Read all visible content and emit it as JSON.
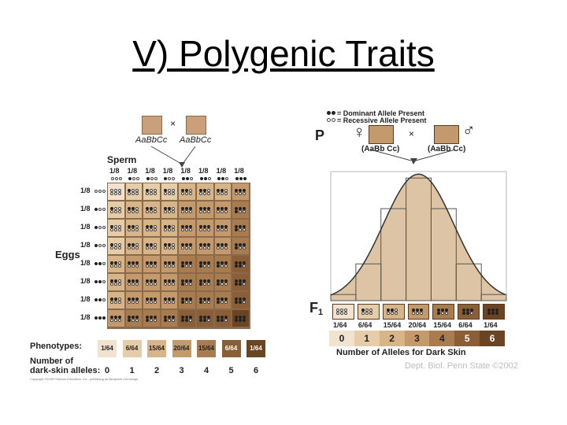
{
  "slide": {
    "title": "V) Polygenic Traits"
  },
  "left": {
    "parent_female_label": "AaBbCc",
    "parent_male_label": "AaBbCc",
    "cross_symbol": "×",
    "sperm_label": "Sperm",
    "eggs_label": "Eggs",
    "gamete_frequency": "1/8",
    "gamete_dark_counts": [
      0,
      1,
      1,
      1,
      2,
      2,
      2,
      3
    ],
    "phenotypes_label": "Phenotypes:",
    "number_of_label": "Number of",
    "dark_skin_alleles_label": "dark-skin alleles:",
    "phenotype_fractions": [
      "1/64",
      "6/64",
      "15/64",
      "20/64",
      "15/64",
      "6/64",
      "1/64"
    ],
    "allele_numbers": [
      "0",
      "1",
      "2",
      "3",
      "4",
      "5",
      "6"
    ],
    "copyright": "Copyright ©2005 Pearson Education, Inc., publishing as Benjamin Cummings"
  },
  "right": {
    "legend_dominant": "= Dominant Allele Present",
    "legend_recessive": "= Recessive Allele Present",
    "p_label": "P",
    "f1_label": "F",
    "f1_sub": "1",
    "female_symbol": "♀",
    "male_symbol": "♂",
    "parent_female_genotype": "(AaBb Cc)",
    "parent_male_genotype": "(AaBb Cc)",
    "cross_symbol": "×",
    "fractions": [
      "1/64",
      "6/64",
      "15/64",
      "20/64",
      "15/64",
      "6/64",
      "1/64"
    ],
    "allele_numbers": [
      "0",
      "1",
      "2",
      "3",
      "4",
      "5",
      "6"
    ],
    "axis_title": "Number of Alleles for Dark Skin",
    "credit": "Dept. Biol. Penn State ©2002"
  },
  "chart_data": {
    "type": "bar",
    "categories": [
      "0",
      "1",
      "2",
      "3",
      "4",
      "5",
      "6"
    ],
    "values": [
      1,
      6,
      15,
      20,
      15,
      6,
      1
    ],
    "value_labels": [
      "1/64",
      "6/64",
      "15/64",
      "20/64",
      "15/64",
      "6/64",
      "1/64"
    ],
    "xlabel": "Number of Alleles for Dark Skin",
    "ylabel": "",
    "ylim": [
      0,
      20
    ],
    "grid": false,
    "overlay": "normal curve"
  },
  "colors": {
    "tone_0": "#f1e3cf",
    "tone_1": "#e6cda9",
    "tone_2": "#d8b489",
    "tone_3": "#c49a6c",
    "tone_4": "#a97c50",
    "tone_5": "#8a5f38",
    "tone_6": "#6b4423"
  }
}
